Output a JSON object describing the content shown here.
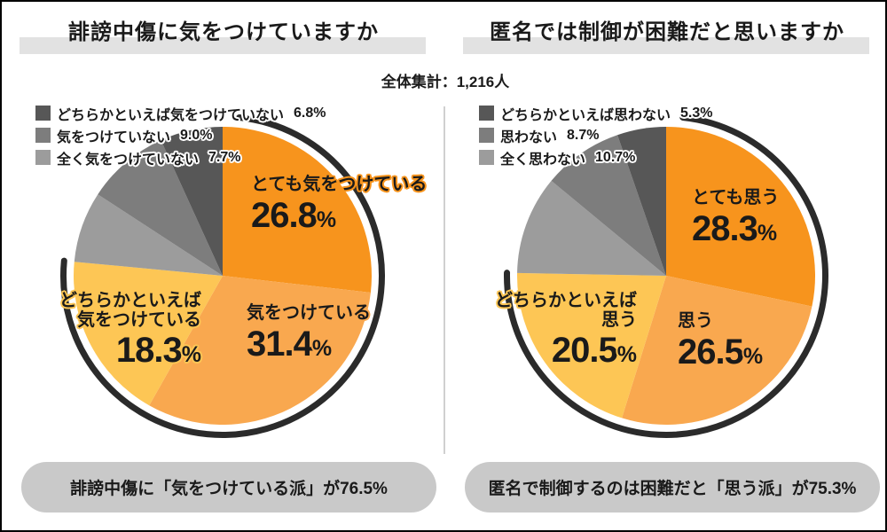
{
  "header": {
    "total": "全体集計：1,216人"
  },
  "common": {
    "percent_sign": "%"
  },
  "colors": {
    "accent_orange": "#f7941d",
    "light_orange": "#f9a84f",
    "yellow": "#fdc655",
    "gray_dark": "#575757",
    "gray_mid": "#7d7d7d",
    "gray_light": "#9c9c9c",
    "emphasis_arc": "#2b2b2b",
    "title_bar": "#e2e2e2",
    "summary_pill": "#c9c9c9"
  },
  "chart_data": [
    {
      "type": "pie",
      "title": "誹謗中傷に気をつけていますか",
      "slices": [
        {
          "label": "とても気をつけている",
          "value": 26.8,
          "color": "#f7941d"
        },
        {
          "label": "気をつけている",
          "value": 31.4,
          "color": "#f9a84f"
        },
        {
          "label": "どちらかといえば気をつけている",
          "value": 18.3,
          "color": "#fdc655"
        },
        {
          "label": "全く気をつけていない",
          "value": 7.7,
          "color": "#9c9c9c"
        },
        {
          "label": "気をつけていない",
          "value": 9.0,
          "color": "#7d7d7d"
        },
        {
          "label": "どちらかといえば気をつけていない",
          "value": 6.8,
          "color": "#575757"
        }
      ],
      "legend": [
        {
          "label": "どちらかといえば気をつけていない",
          "pct": "6.8%"
        },
        {
          "label": "気をつけていない",
          "pct": "9.0%"
        },
        {
          "label": "全く気をつけていない",
          "pct": "7.7%"
        }
      ],
      "callout_split": {
        "line1": "どちらかといえば",
        "line2": "気をつけている"
      },
      "footer": "誹謗中傷に「気をつけている派」が76.5%"
    },
    {
      "type": "pie",
      "title": "匿名では制御が困難だと思いますか",
      "slices": [
        {
          "label": "とても思う",
          "value": 28.3,
          "color": "#f7941d"
        },
        {
          "label": "思う",
          "value": 26.5,
          "color": "#f9a84f"
        },
        {
          "label": "どちらかといえば思う",
          "value": 20.5,
          "color": "#fdc655"
        },
        {
          "label": "全く思わない",
          "value": 10.7,
          "color": "#9c9c9c"
        },
        {
          "label": "思わない",
          "value": 8.7,
          "color": "#7d7d7d"
        },
        {
          "label": "どちらかといえば思わない",
          "value": 5.3,
          "color": "#575757"
        }
      ],
      "legend": [
        {
          "label": "どちらかといえば思わない",
          "pct": "5.3%"
        },
        {
          "label": "思わない",
          "pct": "8.7%"
        },
        {
          "label": "全く思わない",
          "pct": "10.7%"
        }
      ],
      "callout_split": {
        "line1": "どちらかといえば",
        "line2": "思う"
      },
      "footer": "匿名で制御するのは困難だと「思う派」が75.3%"
    }
  ]
}
